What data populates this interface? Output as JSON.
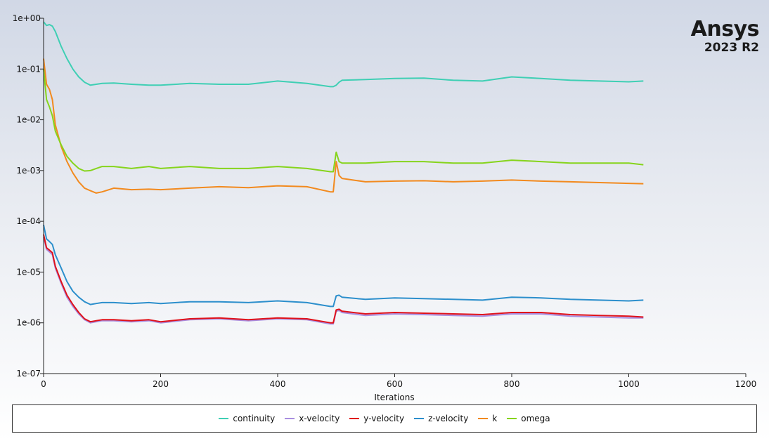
{
  "logo": {
    "name": "Ansys",
    "version": "2023 R2"
  },
  "chart_data": {
    "type": "line",
    "xlabel": "Iterations",
    "ylabel": "",
    "yscale": "log",
    "xlim": [
      0,
      1200
    ],
    "ylim": [
      1e-07,
      1
    ],
    "x_ticks": [
      "0",
      "200",
      "400",
      "600",
      "800",
      "1000",
      "1200"
    ],
    "y_ticks": [
      "1e-07",
      "1e-06",
      "1e-05",
      "1e-04",
      "1e-03",
      "1e-02",
      "1e-01",
      "1e+00"
    ],
    "legend_position": "bottom",
    "grid": false,
    "x": [
      0,
      5,
      10,
      15,
      20,
      30,
      40,
      50,
      60,
      70,
      80,
      90,
      100,
      120,
      150,
      180,
      200,
      250,
      300,
      350,
      400,
      450,
      490,
      495,
      500,
      505,
      510,
      550,
      600,
      650,
      700,
      750,
      800,
      850,
      900,
      950,
      1000,
      1025
    ],
    "series": [
      {
        "name": "continuity",
        "color": "#3fcfb4",
        "values": [
          0.85,
          0.72,
          0.75,
          0.7,
          0.55,
          0.28,
          0.16,
          0.1,
          0.07,
          0.055,
          0.048,
          0.05,
          0.052,
          0.053,
          0.05,
          0.048,
          0.048,
          0.052,
          0.05,
          0.05,
          0.058,
          0.052,
          0.045,
          0.045,
          0.048,
          0.055,
          0.06,
          0.062,
          0.065,
          0.066,
          0.06,
          0.058,
          0.07,
          0.065,
          0.06,
          0.058,
          0.056,
          0.058
        ]
      },
      {
        "name": "x-velocity",
        "color": "#a98ee0",
        "values": [
          5e-05,
          2.8e-05,
          2.5e-05,
          2.2e-05,
          1.2e-05,
          6e-06,
          3.2e-06,
          2.1e-06,
          1.5e-06,
          1.15e-06,
          1e-06,
          1.05e-06,
          1.1e-06,
          1.1e-06,
          1.05e-06,
          1.1e-06,
          1e-06,
          1.15e-06,
          1.2e-06,
          1.1e-06,
          1.2e-06,
          1.15e-06,
          9.5e-07,
          9.5e-07,
          1.7e-06,
          1.75e-06,
          1.6e-06,
          1.4e-06,
          1.5e-06,
          1.45e-06,
          1.4e-06,
          1.35e-06,
          1.5e-06,
          1.5e-06,
          1.35e-06,
          1.3e-06,
          1.25e-06,
          1.25e-06
        ]
      },
      {
        "name": "y-velocity",
        "color": "#e0111a",
        "values": [
          5.5e-05,
          3e-05,
          2.7e-05,
          2.4e-05,
          1.3e-05,
          6.5e-06,
          3.5e-06,
          2.3e-06,
          1.6e-06,
          1.2e-06,
          1.05e-06,
          1.1e-06,
          1.15e-06,
          1.15e-06,
          1.1e-06,
          1.15e-06,
          1.05e-06,
          1.2e-06,
          1.25e-06,
          1.15e-06,
          1.25e-06,
          1.2e-06,
          1e-06,
          1e-06,
          1.8e-06,
          1.85e-06,
          1.7e-06,
          1.5e-06,
          1.6e-06,
          1.55e-06,
          1.5e-06,
          1.45e-06,
          1.6e-06,
          1.6e-06,
          1.45e-06,
          1.4e-06,
          1.35e-06,
          1.3e-06
        ]
      },
      {
        "name": "z-velocity",
        "color": "#2c8fcc",
        "values": [
          8.5e-05,
          4.5e-05,
          4e-05,
          3.5e-05,
          2.2e-05,
          1.2e-05,
          6.5e-06,
          4.2e-06,
          3.2e-06,
          2.6e-06,
          2.3e-06,
          2.4e-06,
          2.5e-06,
          2.5e-06,
          2.4e-06,
          2.5e-06,
          2.4e-06,
          2.6e-06,
          2.6e-06,
          2.5e-06,
          2.7e-06,
          2.5e-06,
          2.1e-06,
          2.1e-06,
          3.4e-06,
          3.5e-06,
          3.2e-06,
          2.9e-06,
          3.1e-06,
          3e-06,
          2.9e-06,
          2.8e-06,
          3.2e-06,
          3.1e-06,
          2.9e-06,
          2.8e-06,
          2.7e-06,
          2.8e-06
        ]
      },
      {
        "name": "k",
        "color": "#f28a1e",
        "values": [
          0.16,
          0.05,
          0.04,
          0.025,
          0.008,
          0.003,
          0.0015,
          0.0009,
          0.0006,
          0.00045,
          0.0004,
          0.00036,
          0.00038,
          0.00045,
          0.00042,
          0.00043,
          0.00042,
          0.00045,
          0.00048,
          0.00046,
          0.0005,
          0.00048,
          0.00038,
          0.00038,
          0.0015,
          0.0008,
          0.0007,
          0.0006,
          0.00062,
          0.00063,
          0.0006,
          0.00062,
          0.00065,
          0.00062,
          0.0006,
          0.00058,
          0.00056,
          0.00055
        ]
      },
      {
        "name": "omega",
        "color": "#86d41c",
        "values": [
          0.1,
          0.025,
          0.018,
          0.012,
          0.006,
          0.0032,
          0.0019,
          0.0014,
          0.0011,
          0.00098,
          0.001,
          0.0011,
          0.0012,
          0.0012,
          0.0011,
          0.0012,
          0.0011,
          0.0012,
          0.0011,
          0.0011,
          0.0012,
          0.0011,
          0.00095,
          0.00095,
          0.0023,
          0.0015,
          0.0014,
          0.0014,
          0.0015,
          0.0015,
          0.0014,
          0.0014,
          0.0016,
          0.0015,
          0.0014,
          0.0014,
          0.0014,
          0.0013
        ]
      }
    ]
  }
}
